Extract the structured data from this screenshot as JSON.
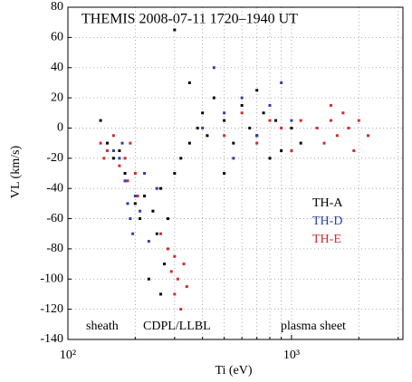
{
  "chart_data": {
    "type": "scatter",
    "title": "THEMIS  2008-07-11  1720–1940 UT",
    "x_label": "Ti (eV)",
    "y_label": "VL (km/s)",
    "xscale": "log",
    "xlim": [
      100,
      3150
    ],
    "xticks": [
      {
        "value": 100,
        "label": "10²"
      },
      {
        "value": 1000,
        "label": "10³"
      }
    ],
    "x_minor_ticks": [
      200,
      300,
      400,
      500,
      600,
      700,
      800,
      900,
      2000,
      3000
    ],
    "ylim": [
      -140,
      80
    ],
    "yticks": [
      -140,
      -120,
      -100,
      -80,
      -60,
      -40,
      -20,
      0,
      20,
      40,
      60,
      80
    ],
    "grid": true,
    "legend": "right",
    "annotations": [
      "sheath",
      "CDPL/LLBL",
      "plasma sheet"
    ],
    "series": [
      {
        "name": "TH-A",
        "color": "#000000",
        "x": [
          140,
          150,
          160,
          170,
          180,
          200,
          210,
          220,
          240,
          250,
          260,
          270,
          280,
          300,
          320,
          350,
          380,
          400,
          420,
          450,
          500,
          550,
          600,
          650,
          700,
          750,
          800,
          850,
          900,
          1000,
          1100,
          300,
          350,
          230,
          260,
          500,
          700
        ],
        "values": [
          5,
          -10,
          -20,
          -15,
          -30,
          -50,
          -60,
          -45,
          -55,
          -70,
          -40,
          -90,
          -60,
          -30,
          -20,
          -10,
          0,
          10,
          -5,
          20,
          5,
          -10,
          15,
          0,
          -5,
          10,
          -20,
          5,
          -15,
          0,
          -10,
          65,
          30,
          -100,
          -110,
          -30,
          25
        ]
      },
      {
        "name": "TH-D",
        "color": "#2b3ea8",
        "x": [
          170,
          180,
          185,
          190,
          200,
          195,
          210,
          220,
          230,
          175,
          160,
          250,
          400,
          500,
          600,
          700,
          800,
          900,
          1000,
          450,
          550
        ],
        "values": [
          -20,
          -35,
          -50,
          -60,
          -45,
          -70,
          -55,
          -30,
          -75,
          -10,
          -15,
          -40,
          0,
          10,
          20,
          -5,
          15,
          30,
          5,
          40,
          -20
        ]
      },
      {
        "name": "TH-E",
        "color": "#d42a2a",
        "x": [
          140,
          145,
          150,
          160,
          170,
          180,
          190,
          200,
          185,
          205,
          260,
          280,
          290,
          300,
          310,
          320,
          330,
          340,
          300,
          500,
          600,
          700,
          800,
          900,
          1000,
          1100,
          1300,
          1400,
          1500,
          1600,
          1700,
          1800,
          1900,
          2000,
          2200,
          1500
        ],
        "values": [
          -10,
          -20,
          -15,
          -5,
          -25,
          -20,
          -10,
          -30,
          -35,
          -45,
          -70,
          -80,
          -95,
          -110,
          -100,
          -120,
          -90,
          -105,
          -85,
          -5,
          10,
          -10,
          5,
          0,
          -15,
          5,
          0,
          -10,
          5,
          -5,
          10,
          0,
          -15,
          5,
          -5,
          15
        ]
      }
    ]
  }
}
